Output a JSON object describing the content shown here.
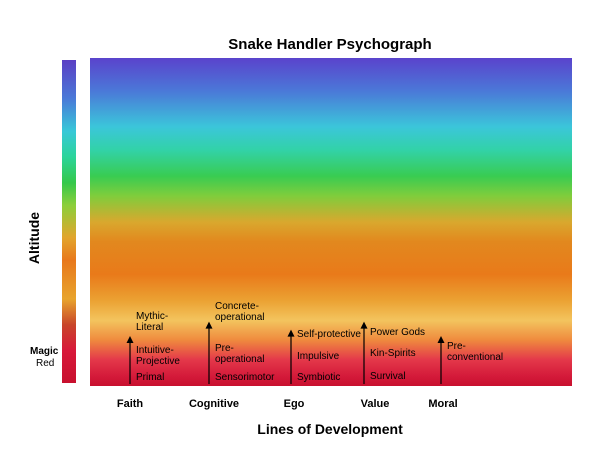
{
  "chart_data": {
    "type": "psychograph",
    "title": "Snake Handler Psychograph",
    "xlabel": "Lines of Development",
    "ylabel": "Altitude",
    "scale_labels": [
      {
        "name": "Magic",
        "sub": "Red"
      }
    ],
    "categories": [
      "Faith",
      "Cognitive",
      "Ego",
      "Value",
      "Moral"
    ],
    "lines": [
      {
        "name": "Faith",
        "arrow_height": 0.6,
        "levels": [
          {
            "label": "Primal",
            "y": 0.08
          },
          {
            "label": "Intuitive-\nProjective",
            "y": 0.35
          },
          {
            "label": "Mythic-\nLiteral",
            "y": 0.78
          }
        ]
      },
      {
        "name": "Cognitive",
        "arrow_height": 0.78,
        "levels": [
          {
            "label": "Sensorimotor",
            "y": 0.08
          },
          {
            "label": "Pre-\noperational",
            "y": 0.38
          },
          {
            "label": "Concrete-\noperational",
            "y": 0.9
          }
        ]
      },
      {
        "name": "Ego",
        "arrow_height": 0.68,
        "levels": [
          {
            "label": "Symbiotic",
            "y": 0.08
          },
          {
            "label": "Impulsive",
            "y": 0.35
          },
          {
            "label": "Self-protective",
            "y": 0.62
          }
        ]
      },
      {
        "name": "Value",
        "arrow_height": 0.78,
        "levels": [
          {
            "label": "Survival",
            "y": 0.1
          },
          {
            "label": "Kin-Spirits",
            "y": 0.38
          },
          {
            "label": "Power Gods",
            "y": 0.65
          }
        ]
      },
      {
        "name": "Moral",
        "arrow_height": 0.6,
        "levels": [
          {
            "label": "Pre-\nconventional",
            "y": 0.4
          }
        ]
      }
    ]
  }
}
